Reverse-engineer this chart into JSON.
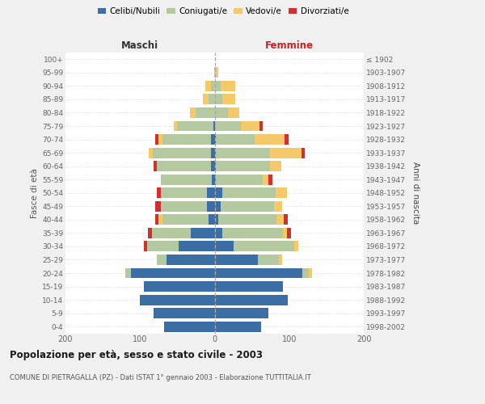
{
  "age_groups": [
    "0-4",
    "5-9",
    "10-14",
    "15-19",
    "20-24",
    "25-29",
    "30-34",
    "35-39",
    "40-44",
    "45-49",
    "50-54",
    "55-59",
    "60-64",
    "65-69",
    "70-74",
    "75-79",
    "80-84",
    "85-89",
    "90-94",
    "95-99",
    "100+"
  ],
  "birth_years": [
    "1998-2002",
    "1993-1997",
    "1988-1992",
    "1983-1987",
    "1978-1982",
    "1973-1977",
    "1968-1972",
    "1963-1967",
    "1958-1962",
    "1953-1957",
    "1948-1952",
    "1943-1947",
    "1938-1942",
    "1933-1937",
    "1928-1932",
    "1923-1927",
    "1918-1922",
    "1913-1917",
    "1908-1912",
    "1903-1907",
    "≤ 1902"
  ],
  "maschi_celibi": [
    68,
    82,
    100,
    95,
    112,
    65,
    48,
    32,
    8,
    10,
    10,
    4,
    5,
    5,
    5,
    2,
    0,
    0,
    0,
    0,
    0
  ],
  "maschi_coniugati": [
    0,
    0,
    0,
    0,
    8,
    13,
    42,
    52,
    62,
    62,
    62,
    68,
    72,
    78,
    65,
    48,
    25,
    8,
    5,
    1,
    0
  ],
  "maschi_vedovi": [
    0,
    0,
    0,
    0,
    0,
    0,
    0,
    0,
    5,
    0,
    0,
    0,
    0,
    5,
    5,
    5,
    8,
    8,
    8,
    0,
    0
  ],
  "maschi_divorziati": [
    0,
    0,
    0,
    0,
    0,
    0,
    5,
    5,
    5,
    8,
    5,
    0,
    5,
    0,
    5,
    0,
    0,
    0,
    0,
    0,
    0
  ],
  "femmine_nubili": [
    62,
    72,
    98,
    92,
    118,
    58,
    25,
    10,
    5,
    8,
    10,
    2,
    2,
    2,
    2,
    0,
    0,
    0,
    0,
    0,
    0
  ],
  "femmine_coniugate": [
    0,
    0,
    0,
    0,
    8,
    28,
    82,
    82,
    78,
    72,
    72,
    62,
    72,
    72,
    52,
    35,
    18,
    10,
    8,
    0,
    0
  ],
  "femmine_vedove": [
    0,
    0,
    0,
    0,
    5,
    5,
    5,
    5,
    10,
    10,
    15,
    8,
    15,
    42,
    40,
    25,
    15,
    18,
    20,
    5,
    0
  ],
  "femmine_divorziate": [
    0,
    0,
    0,
    0,
    0,
    0,
    0,
    5,
    5,
    0,
    0,
    5,
    0,
    5,
    5,
    5,
    0,
    0,
    0,
    0,
    0
  ],
  "color_celibi": "#3a6ea5",
  "color_coniugati": "#b5c9a0",
  "color_vedovi": "#f5c96a",
  "color_divorziati": "#d03030",
  "title": "Popolazione per età, sesso e stato civile - 2003",
  "subtitle": "COMUNE DI PIETRAGALLA (PZ) - Dati ISTAT 1° gennaio 2003 - Elaborazione TUTTITALIA.IT",
  "ylabel_left": "Fasce di età",
  "ylabel_right": "Anni di nascita",
  "label_maschi": "Maschi",
  "label_femmine": "Femmine",
  "xlim": 200,
  "bg_color": "#f0f0f0",
  "plot_bg": "#ffffff"
}
